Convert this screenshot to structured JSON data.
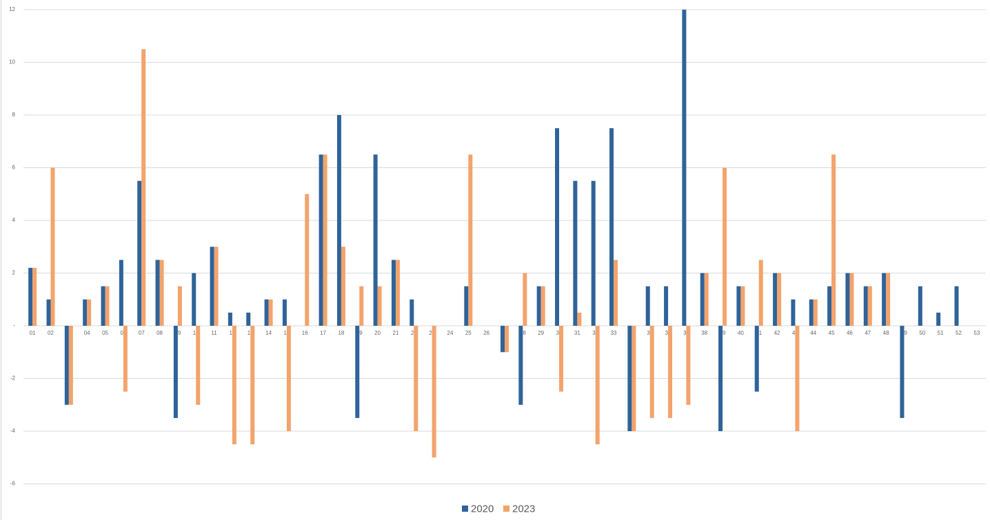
{
  "chart_data": {
    "type": "bar",
    "categories": [
      "01",
      "02",
      "03",
      "04",
      "05",
      "06",
      "07",
      "08",
      "09",
      "10",
      "11",
      "12",
      "13",
      "14",
      "15",
      "16",
      "17",
      "18",
      "19",
      "20",
      "21",
      "22",
      "23",
      "24",
      "25",
      "26",
      "27",
      "28",
      "29",
      "30",
      "31",
      "32",
      "33",
      "34",
      "35",
      "36",
      "37",
      "38",
      "39",
      "40",
      "41",
      "42",
      "43",
      "44",
      "45",
      "46",
      "47",
      "48",
      "49",
      "50",
      "51",
      "52",
      "53"
    ],
    "series": [
      {
        "name": "2020",
        "color": "#2f6399",
        "values": [
          2.2,
          1,
          -3,
          1,
          1.5,
          2.5,
          5.5,
          2.5,
          -3.5,
          2,
          3,
          0.5,
          0.5,
          1,
          1,
          0,
          6.5,
          8,
          -3.5,
          6.5,
          2.5,
          1,
          0,
          0,
          1.5,
          0,
          -1,
          -3,
          1.5,
          7.5,
          5.5,
          5.5,
          7.5,
          -4,
          1.5,
          1.5,
          12,
          2,
          -4,
          1.5,
          -2.5,
          2,
          1,
          1,
          1.5,
          2,
          1.5,
          2,
          -3.5,
          1.5,
          0.5,
          1.5,
          0
        ]
      },
      {
        "name": "2023",
        "color": "#f3a36c",
        "values": [
          2.2,
          6,
          -3,
          1,
          1.5,
          -2.5,
          10.5,
          2.5,
          1.5,
          -3,
          3,
          -4.5,
          -4.5,
          1,
          -4,
          5,
          6.5,
          3,
          1.5,
          1.5,
          2.5,
          -4,
          -5,
          0,
          6.5,
          0,
          -1,
          2,
          1.5,
          -2.5,
          0.5,
          -4.5,
          2.5,
          -4,
          -3.5,
          -3.5,
          -3,
          2,
          6,
          1.5,
          2.5,
          2,
          -4,
          1,
          6.5,
          2,
          1.5,
          2,
          0,
          0,
          0,
          0,
          0
        ]
      }
    ],
    "ylim": [
      -6,
      12
    ],
    "yticks": [
      -6,
      -4,
      -2,
      {
        "value": 0,
        "label": "-"
      },
      2,
      4,
      6,
      8,
      10,
      12
    ],
    "grid": true,
    "legend": "bottom"
  }
}
